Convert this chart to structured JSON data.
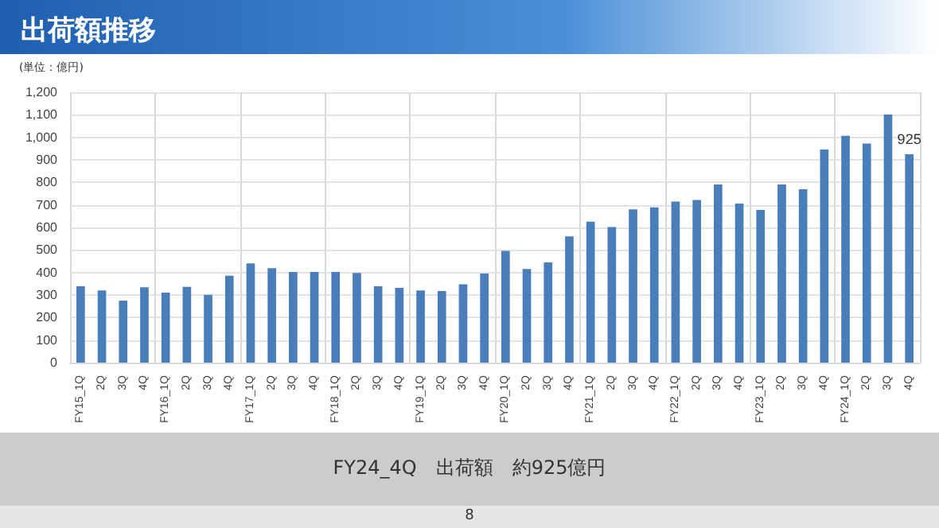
{
  "chart_data": {
    "type": "bar",
    "title": "出荷額推移",
    "annotations": [
      "(単位：億円)",
      "FY24_4Q　出荷額　約925億円",
      "8"
    ],
    "categories": [
      "FY15_1Q",
      "2Q",
      "3Q",
      "4Q",
      "FY16_1Q",
      "2Q",
      "3Q",
      "4Q",
      "FY17_1Q",
      "2Q",
      "3Q",
      "4Q",
      "FY18_1Q",
      "2Q",
      "3Q",
      "4Q",
      "FY19_1Q",
      "2Q",
      "3Q",
      "4Q",
      "FY20_1Q",
      "2Q",
      "3Q",
      "4Q",
      "FY21_1Q",
      "2Q",
      "3Q",
      "4Q",
      "FY22_1Q",
      "2Q",
      "3Q",
      "4Q",
      "FY23_1Q",
      "2Q",
      "3Q",
      "4Q",
      "FY24_1Q",
      "2Q",
      "3Q",
      "4Q"
    ],
    "values": [
      339,
      320,
      275,
      334,
      311,
      336,
      301,
      386,
      440,
      419,
      402,
      402,
      402,
      398,
      339,
      332,
      320,
      318,
      348,
      395,
      496,
      416,
      445,
      560,
      626,
      602,
      680,
      689,
      715,
      722,
      791,
      706,
      678,
      791,
      769,
      946,
      1007,
      972,
      1101,
      925
    ],
    "value_labels": [
      null,
      null,
      null,
      null,
      null,
      null,
      null,
      null,
      null,
      null,
      null,
      null,
      null,
      null,
      null,
      null,
      null,
      null,
      null,
      null,
      null,
      null,
      null,
      null,
      null,
      null,
      null,
      null,
      null,
      null,
      null,
      null,
      null,
      null,
      null,
      null,
      null,
      null,
      null,
      "925"
    ],
    "color": "#4a7ebb",
    "ylim": [
      0,
      1200
    ],
    "yticks": [
      0,
      100,
      200,
      300,
      400,
      500,
      600,
      700,
      800,
      900,
      {
        "value": 1000,
        "label": "1,000"
      },
      {
        "value": 1100,
        "label": "1,100"
      },
      {
        "value": 1200,
        "label": "1,200"
      }
    ],
    "grid": true
  }
}
